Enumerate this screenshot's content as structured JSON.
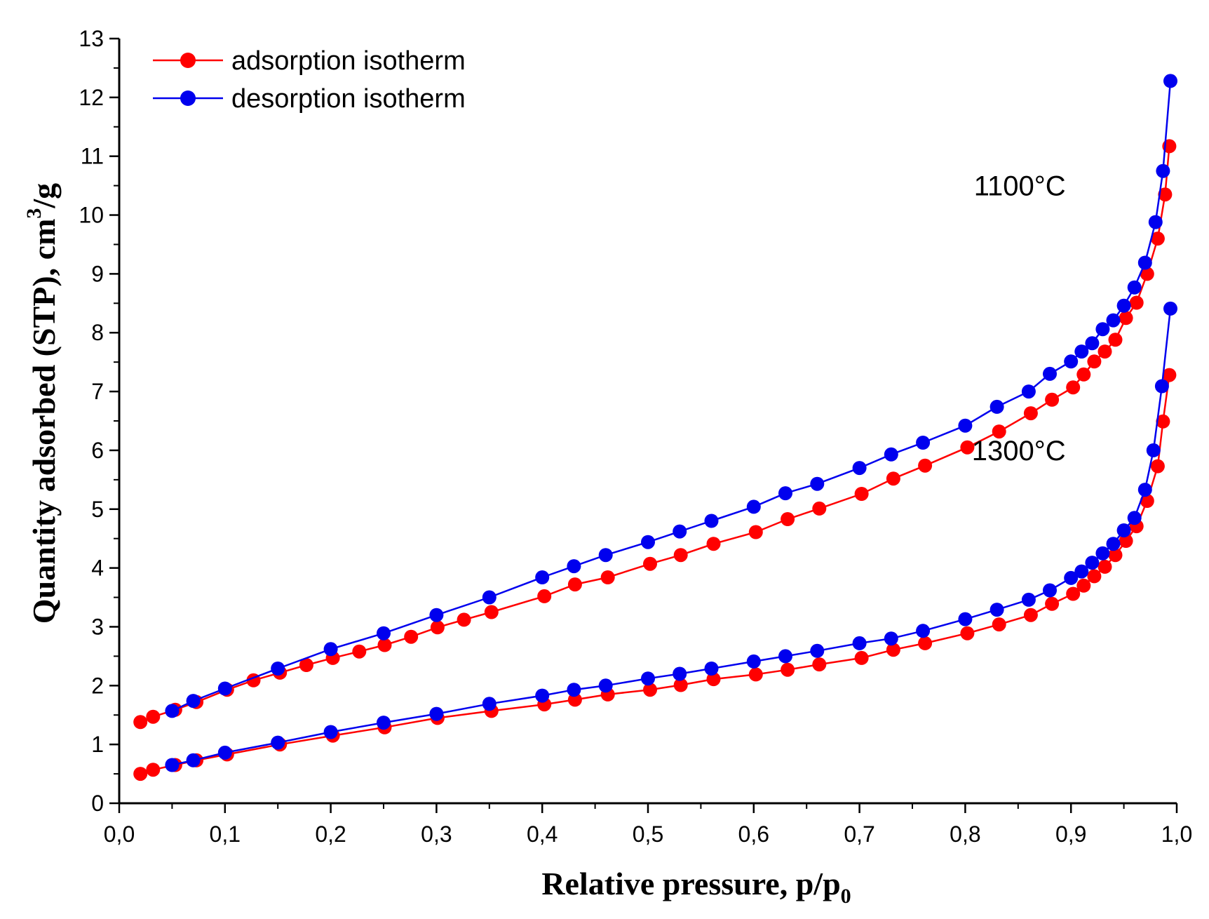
{
  "chart_data": {
    "type": "line",
    "xlabel_main": "Relative pressure, p/p",
    "xlabel_sub": "0",
    "ylabel_main": "Quantity adsorbed (STP), cm",
    "ylabel_sup": "3",
    "ylabel_tail": "/g",
    "xlim": [
      0.0,
      1.0
    ],
    "ylim": [
      0,
      13
    ],
    "x_ticks": [
      0.0,
      0.1,
      0.2,
      0.3,
      0.4,
      0.5,
      0.6,
      0.7,
      0.8,
      0.9,
      1.0
    ],
    "x_tick_labels": [
      "0,0",
      "0,1",
      "0,2",
      "0,3",
      "0,4",
      "0,5",
      "0,6",
      "0,7",
      "0,8",
      "0,9",
      "1,0"
    ],
    "y_ticks": [
      0,
      1,
      2,
      3,
      4,
      5,
      6,
      7,
      8,
      9,
      10,
      11,
      12,
      13
    ],
    "y_tick_labels": [
      "0",
      "1",
      "2",
      "3",
      "4",
      "5",
      "6",
      "7",
      "8",
      "9",
      "10",
      "11",
      "12",
      "13"
    ],
    "grid": false,
    "legend_position": "top-left",
    "legend": [
      {
        "label": "adsorption isotherm",
        "color": "#ff0000"
      },
      {
        "label": "desorption isotherm",
        "color": "#0000ee"
      }
    ],
    "annotations": [
      {
        "text": "1100°C",
        "x": 0.895,
        "y": 10.5
      },
      {
        "text": "1300°C",
        "x": 0.895,
        "y": 6.0
      }
    ],
    "series": [
      {
        "name": "adsorption isotherm 1100°C",
        "kind": "adsorption",
        "color": "#ff0000",
        "x": [
          0.02,
          0.032,
          0.053,
          0.073,
          0.102,
          0.127,
          0.152,
          0.177,
          0.202,
          0.227,
          0.251,
          0.276,
          0.301,
          0.326,
          0.352,
          0.402,
          0.431,
          0.462,
          0.502,
          0.531,
          0.562,
          0.602,
          0.632,
          0.662,
          0.702,
          0.732,
          0.762,
          0.802,
          0.832,
          0.862,
          0.882,
          0.902,
          0.912,
          0.922,
          0.932,
          0.942,
          0.952,
          0.962,
          0.972,
          0.982,
          0.989,
          0.993
        ],
        "y": [
          1.38,
          1.47,
          1.59,
          1.72,
          1.93,
          2.09,
          2.22,
          2.35,
          2.47,
          2.58,
          2.69,
          2.83,
          2.99,
          3.12,
          3.25,
          3.52,
          3.72,
          3.84,
          4.07,
          4.22,
          4.41,
          4.61,
          4.83,
          5.01,
          5.26,
          5.52,
          5.74,
          6.05,
          6.32,
          6.63,
          6.86,
          7.07,
          7.29,
          7.51,
          7.68,
          7.88,
          8.25,
          8.51,
          9.0,
          9.6,
          10.35,
          11.17
        ]
      },
      {
        "name": "desorption isotherm 1100°C",
        "kind": "desorption",
        "color": "#0000ee",
        "x": [
          0.05,
          0.07,
          0.1,
          0.15,
          0.2,
          0.25,
          0.3,
          0.35,
          0.4,
          0.43,
          0.46,
          0.5,
          0.53,
          0.56,
          0.6,
          0.63,
          0.66,
          0.7,
          0.73,
          0.76,
          0.8,
          0.83,
          0.86,
          0.88,
          0.9,
          0.91,
          0.92,
          0.93,
          0.94,
          0.95,
          0.96,
          0.97,
          0.98,
          0.987,
          0.994
        ],
        "y": [
          1.57,
          1.74,
          1.95,
          2.29,
          2.62,
          2.89,
          3.2,
          3.5,
          3.84,
          4.03,
          4.22,
          4.44,
          4.62,
          4.8,
          5.04,
          5.27,
          5.43,
          5.7,
          5.93,
          6.13,
          6.42,
          6.74,
          7.0,
          7.3,
          7.51,
          7.68,
          7.82,
          8.06,
          8.21,
          8.46,
          8.77,
          9.19,
          9.88,
          10.75,
          12.28
        ]
      },
      {
        "name": "adsorption isotherm 1300°C",
        "kind": "adsorption",
        "color": "#ff0000",
        "x": [
          0.02,
          0.032,
          0.053,
          0.073,
          0.102,
          0.152,
          0.202,
          0.251,
          0.301,
          0.352,
          0.402,
          0.431,
          0.462,
          0.502,
          0.531,
          0.562,
          0.602,
          0.632,
          0.662,
          0.702,
          0.732,
          0.762,
          0.802,
          0.832,
          0.862,
          0.882,
          0.902,
          0.912,
          0.922,
          0.932,
          0.942,
          0.952,
          0.962,
          0.972,
          0.982,
          0.987,
          0.993
        ],
        "y": [
          0.5,
          0.57,
          0.65,
          0.73,
          0.83,
          1.0,
          1.15,
          1.29,
          1.45,
          1.57,
          1.68,
          1.76,
          1.85,
          1.93,
          2.01,
          2.11,
          2.19,
          2.27,
          2.36,
          2.47,
          2.61,
          2.72,
          2.89,
          3.04,
          3.2,
          3.39,
          3.56,
          3.7,
          3.86,
          4.02,
          4.22,
          4.46,
          4.71,
          5.14,
          5.73,
          6.49,
          7.28
        ]
      },
      {
        "name": "desorption isotherm 1300°C",
        "kind": "desorption",
        "color": "#0000ee",
        "x": [
          0.05,
          0.07,
          0.1,
          0.15,
          0.2,
          0.25,
          0.3,
          0.35,
          0.4,
          0.43,
          0.46,
          0.5,
          0.53,
          0.56,
          0.6,
          0.63,
          0.66,
          0.7,
          0.73,
          0.76,
          0.8,
          0.83,
          0.86,
          0.88,
          0.9,
          0.91,
          0.92,
          0.93,
          0.94,
          0.95,
          0.96,
          0.97,
          0.978,
          0.986,
          0.994
        ],
        "y": [
          0.65,
          0.73,
          0.86,
          1.03,
          1.21,
          1.37,
          1.52,
          1.69,
          1.83,
          1.93,
          2.0,
          2.12,
          2.2,
          2.29,
          2.41,
          2.5,
          2.59,
          2.72,
          2.8,
          2.93,
          3.13,
          3.29,
          3.46,
          3.62,
          3.83,
          3.94,
          4.09,
          4.25,
          4.41,
          4.64,
          4.85,
          5.33,
          6.0,
          7.09,
          8.41
        ]
      }
    ]
  }
}
